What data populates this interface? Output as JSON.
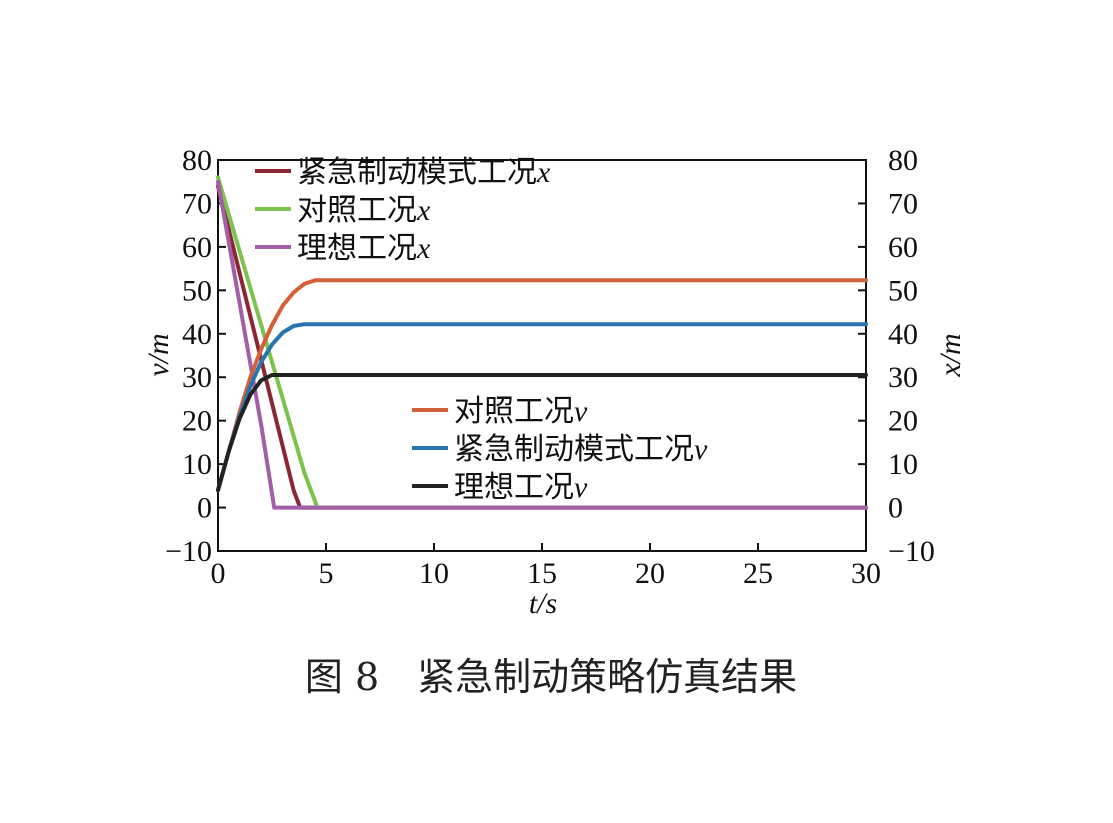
{
  "caption": "图 8　紧急制动策略仿真结果",
  "chart_data": {
    "type": "line",
    "xlabel": "t/s",
    "ylabel_left": "v/m",
    "ylabel_right": "x/m",
    "xlim": [
      0,
      30
    ],
    "ylim": [
      -10,
      80
    ],
    "xticks": [
      0,
      5,
      10,
      15,
      20,
      25,
      30
    ],
    "yticks": [
      -10,
      0,
      10,
      20,
      30,
      40,
      50,
      60,
      70,
      80
    ],
    "tick_labels_y": [
      "−10",
      "0",
      "10",
      "20",
      "30",
      "40",
      "50",
      "60",
      "70",
      "80"
    ],
    "grid": false,
    "legends": [
      {
        "placement": "top-left",
        "entries": [
          "紧急制动模式工况x",
          "对照工况x",
          "理想工况x"
        ]
      },
      {
        "placement": "center",
        "entries": [
          "对照工况v",
          "紧急制动模式工况v",
          "理想工况v"
        ]
      }
    ],
    "series": [
      {
        "name": "紧急制动模式工况x",
        "color": "#8b2632",
        "x": [
          0,
          1,
          2,
          3,
          3.5,
          3.8,
          30
        ],
        "y": [
          74,
          54,
          34,
          14,
          4,
          0,
          0
        ]
      },
      {
        "name": "对照工况x",
        "color": "#7cc24f",
        "x": [
          0,
          1,
          2,
          3,
          4,
          4.6,
          30
        ],
        "y": [
          76,
          59,
          42,
          25,
          8,
          0,
          0
        ]
      },
      {
        "name": "理想工况x",
        "color": "#a35ea8",
        "x": [
          0,
          0.5,
          1,
          1.5,
          2,
          2.6,
          30
        ],
        "y": [
          75,
          61,
          47,
          33,
          19,
          0,
          0
        ]
      },
      {
        "name": "对照工况v",
        "color": "#d4603a",
        "x": [
          0,
          0.5,
          1,
          1.5,
          2,
          2.5,
          3,
          3.5,
          4,
          4.5,
          5,
          30
        ],
        "y": [
          4,
          13,
          22,
          30,
          36.5,
          42,
          46.5,
          49.5,
          51.5,
          52.3,
          52.3,
          52.3
        ]
      },
      {
        "name": "紧急制动模式工况v",
        "color": "#2775ac",
        "x": [
          0,
          0.5,
          1,
          1.5,
          2,
          2.5,
          3,
          3.5,
          4,
          30
        ],
        "y": [
          4,
          13,
          21,
          28,
          33.5,
          37.5,
          40.3,
          41.8,
          42.2,
          42.2
        ]
      },
      {
        "name": "理想工况v",
        "color": "#222222",
        "x": [
          0,
          0.5,
          1,
          1.5,
          2,
          2.5,
          3,
          30
        ],
        "y": [
          4,
          13,
          20.5,
          26,
          29.3,
          30.5,
          30.5,
          30.5
        ]
      }
    ]
  }
}
